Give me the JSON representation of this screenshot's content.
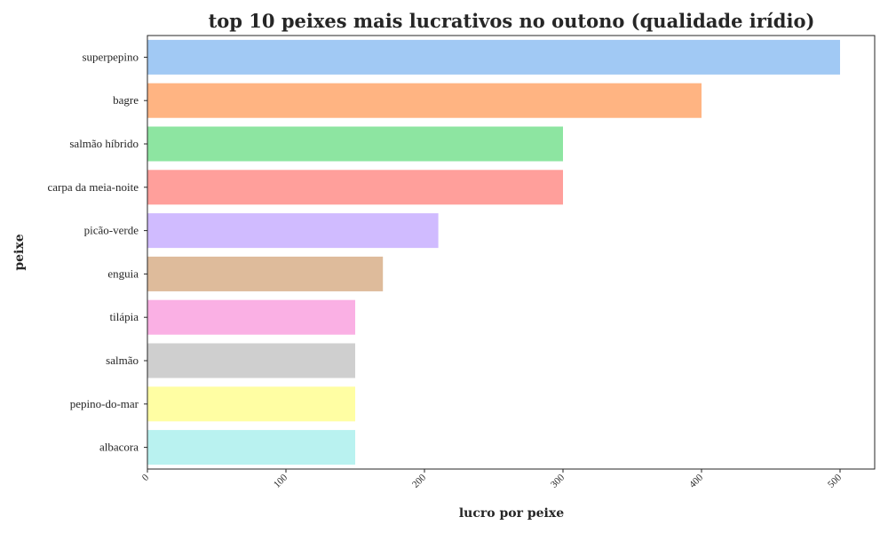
{
  "chart_data": {
    "type": "bar",
    "orientation": "horizontal",
    "title": "top 10 peixes mais lucrativos no outono (qualidade irídio)",
    "xlabel": "lucro por peixe",
    "ylabel": "peixe",
    "xlim": [
      0,
      500
    ],
    "xticks": [
      "0",
      "100",
      "200",
      "300",
      "400",
      "500"
    ],
    "grid": false,
    "categories": [
      "superpepino",
      "bagre",
      "salmão híbrido",
      "carpa da meia-noite",
      "picão-verde",
      "enguia",
      "tilápia",
      "salmão",
      "pepino-do-mar",
      "albacora"
    ],
    "values": [
      500,
      400,
      300,
      300,
      210,
      170,
      150,
      150,
      150,
      150
    ],
    "colors": [
      "#a1c9f4",
      "#ffb482",
      "#8de5a1",
      "#ff9f9b",
      "#d0bbff",
      "#debb9b",
      "#fab0e4",
      "#cfcfcf",
      "#fffea3",
      "#b9f2f0"
    ]
  }
}
